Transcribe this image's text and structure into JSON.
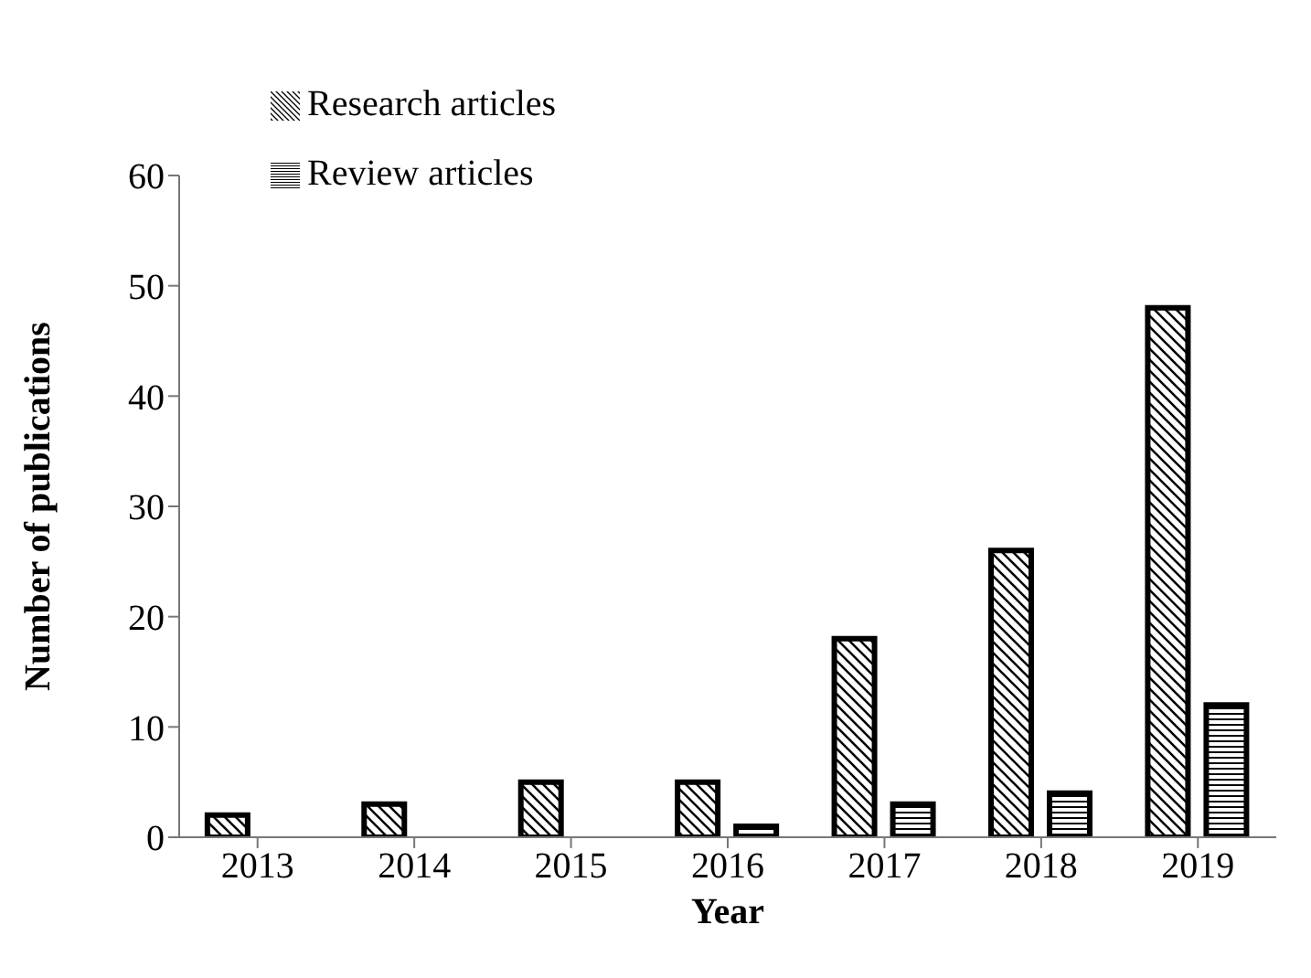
{
  "chart_data": {
    "type": "bar",
    "xlabel": "Year",
    "ylabel": "Number of publications",
    "categories": [
      "2013",
      "2014",
      "2015",
      "2016",
      "2017",
      "2018",
      "2019"
    ],
    "series": [
      {
        "name": "Research articles",
        "color": "#000000",
        "values": [
          2,
          3,
          5,
          5,
          18,
          26,
          48
        ]
      },
      {
        "name": "Review articles",
        "color": "#000000",
        "values": [
          0,
          0,
          0,
          1,
          3,
          4,
          12
        ]
      }
    ],
    "ylim": [
      0,
      60
    ],
    "yticks": [
      0,
      10,
      20,
      30,
      40,
      50,
      60
    ],
    "grid": false,
    "legend": "top left"
  }
}
